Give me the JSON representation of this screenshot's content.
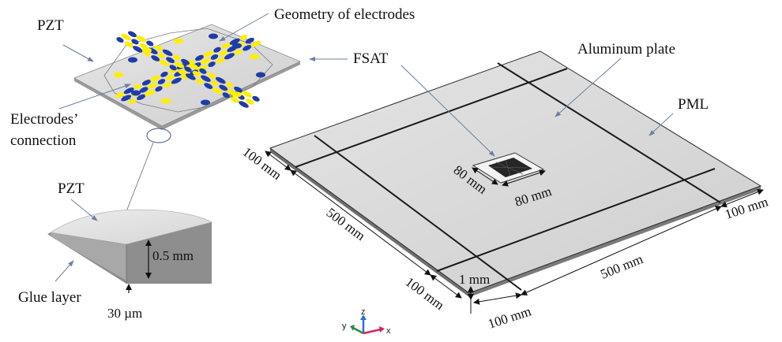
{
  "labels": {
    "geometry_of_electrodes": "Geometry of electrodes",
    "pzt_top": "PZT",
    "electrodes_connection_line1": "Electrodes’",
    "electrodes_connection_line2": "connection",
    "pzt_bottom": "PZT",
    "glue_layer": "Glue layer",
    "fsat": "FSAT",
    "aluminum_plate": "Aluminum plate",
    "pml": "PML"
  },
  "dimensions": {
    "thickness_pzt": "0.5 mm",
    "thickness_glue": "30 µm",
    "plate_thickness": "1 mm",
    "pml_top_left": "100 mm",
    "plate_left_side": "500 mm",
    "pml_bottom_left": "100 mm",
    "pml_bottom": "100 mm",
    "plate_bottom_side": "500 mm",
    "pml_right": "100 mm",
    "fsat_width": "80 mm",
    "fsat_depth": "80 mm"
  },
  "axes": {
    "x": "x",
    "y": "y",
    "z": "z"
  },
  "colors": {
    "pzt_surface": "#d9d9d9",
    "electrode_yellow": "#ffee00",
    "electrode_blue": "#1f3ca8",
    "plate_surface": "#d6d6d6",
    "pml_line": "#1a1a1a",
    "leader_line": "#6b7fa3",
    "axis_x": "#d4246a",
    "axis_y": "#2e8b3e",
    "axis_z": "#2f6fd0"
  }
}
